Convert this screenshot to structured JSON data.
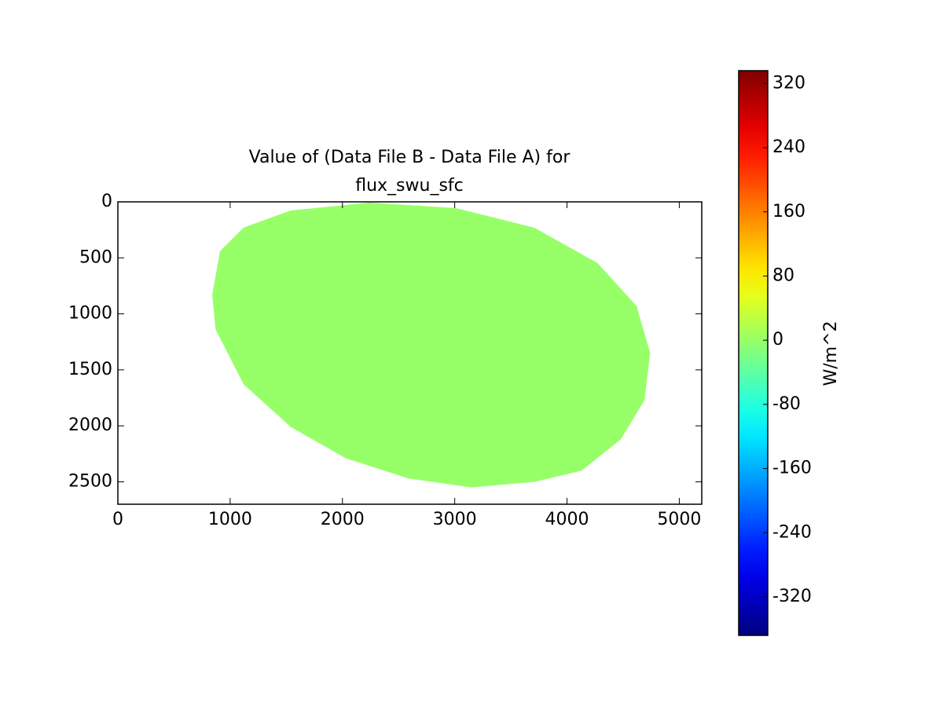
{
  "chart_data": {
    "type": "image",
    "title": [
      "Value of (Data File B - Data File A) for",
      "flux_swu_sfc"
    ],
    "xlim": [
      0,
      5200
    ],
    "xticks": [
      0,
      1000,
      2000,
      3000,
      4000,
      5000
    ],
    "ylim": [
      2700,
      0
    ],
    "yticks": [
      0,
      500,
      1000,
      1500,
      2000,
      2500
    ],
    "region": {
      "outline_x": [
        2240,
        3010,
        3710,
        4270,
        4620,
        4740,
        4690,
        4480,
        4130,
        3710,
        3150,
        2590,
        2030,
        1540,
        1120,
        870,
        840,
        910,
        1120,
        1540
      ],
      "outline_y": [
        7,
        56,
        231,
        545,
        930,
        1350,
        1770,
        2120,
        2400,
        2500,
        2550,
        2470,
        2290,
        2010,
        1630,
        1140,
        830,
        440,
        230,
        77
      ],
      "value": 0
    },
    "colormap": "jet",
    "clim": [
      -368,
      336
    ],
    "cticks": [
      -320,
      -240,
      -160,
      -80,
      0,
      80,
      160,
      240,
      320
    ],
    "colorbar_label": "W/m^2"
  }
}
